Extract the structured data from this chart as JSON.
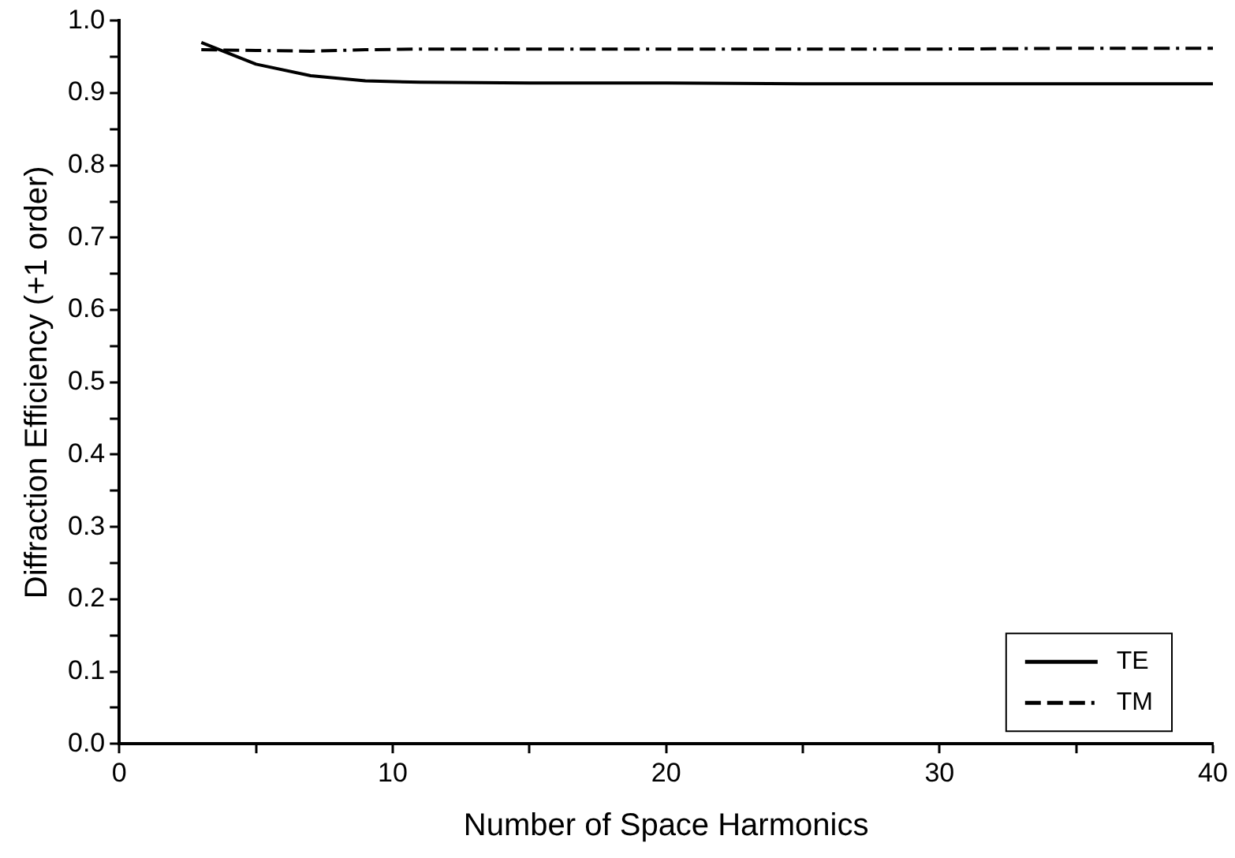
{
  "chart_data": {
    "type": "line",
    "xlabel": "Number of Space Harmonics",
    "ylabel": "Diffraction Efficiency (+1 order)",
    "x": [
      3,
      5,
      7,
      9,
      11,
      15,
      20,
      25,
      30,
      35,
      40
    ],
    "series": [
      {
        "name": "TE",
        "color": "#000000",
        "line_style": "solid",
        "values": [
          0.97,
          0.94,
          0.924,
          0.917,
          0.915,
          0.914,
          0.914,
          0.913,
          0.913,
          0.913,
          0.913
        ]
      },
      {
        "name": "TM",
        "color": "#000000",
        "line_style": "dashed",
        "values": [
          0.96,
          0.959,
          0.958,
          0.96,
          0.961,
          0.961,
          0.961,
          0.961,
          0.961,
          0.962,
          0.962
        ]
      }
    ],
    "xlim": [
      0,
      40
    ],
    "ylim": [
      0,
      1
    ],
    "xticks": [
      0,
      {
        "value": 5,
        "label": null
      },
      10,
      {
        "value": 15,
        "label": null
      },
      20,
      {
        "value": 25,
        "label": null
      },
      30,
      {
        "value": 35,
        "label": null
      },
      40
    ],
    "yticks": [
      {
        "value": 0,
        "label": "0.0"
      },
      {
        "value": 0.05,
        "label": null
      },
      0.1,
      {
        "value": 0.15,
        "label": null
      },
      0.2,
      {
        "value": 0.25,
        "label": null
      },
      0.3,
      {
        "value": 0.35,
        "label": null
      },
      0.4,
      {
        "value": 0.45,
        "label": null
      },
      0.5,
      {
        "value": 0.55,
        "label": null
      },
      0.6,
      {
        "value": 0.65,
        "label": null
      },
      0.7,
      {
        "value": 0.75,
        "label": null
      },
      0.8,
      {
        "value": 0.85,
        "label": null
      },
      0.9,
      {
        "value": 0.95,
        "label": null
      },
      {
        "value": 1,
        "label": "1.0"
      }
    ],
    "grid": false,
    "legend": "bottom right",
    "marker": "none"
  }
}
